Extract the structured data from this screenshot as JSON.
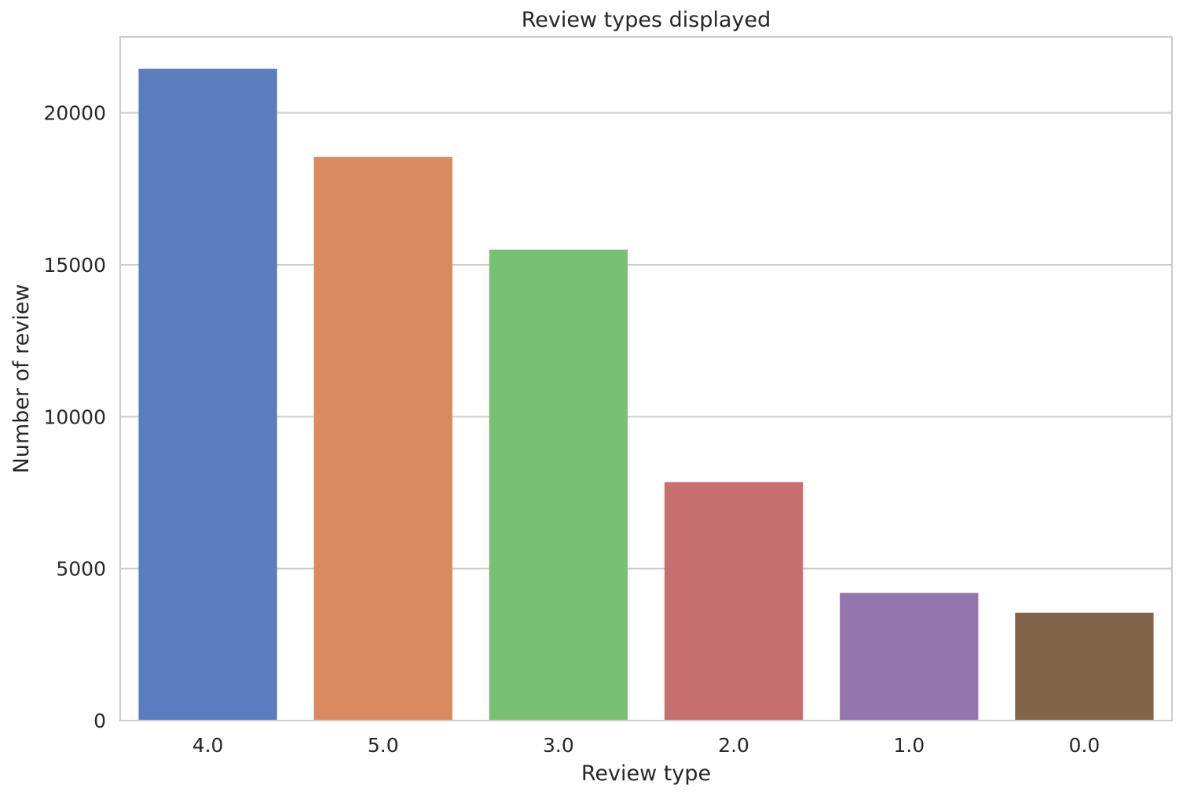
{
  "chart_data": {
    "type": "bar",
    "title": "Review types displayed",
    "xlabel": "Review type",
    "ylabel": "Number of review",
    "categories": [
      "4.0",
      "5.0",
      "3.0",
      "2.0",
      "1.0",
      "0.0"
    ],
    "values": [
      21450,
      18550,
      15500,
      7850,
      4200,
      3550
    ],
    "colors": [
      "#5b7dbf",
      "#d98b5f",
      "#78c072",
      "#c76e6e",
      "#9576ac",
      "#81644a"
    ],
    "ylim": [
      0,
      22500
    ],
    "yticks": [
      0,
      5000,
      10000,
      15000,
      20000
    ],
    "ytick_labels": [
      "0",
      "5000",
      "10000",
      "15000",
      "20000"
    ],
    "grid": "horizontal",
    "legend": "none"
  }
}
